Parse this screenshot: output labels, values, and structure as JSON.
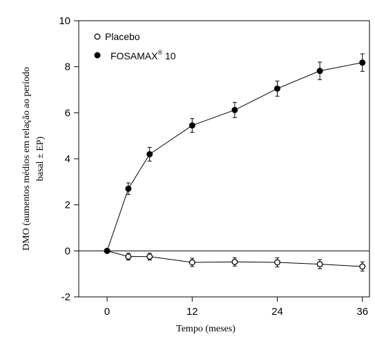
{
  "chart_data": {
    "type": "line",
    "xlabel": "Tempo (meses)",
    "ylabel_line1": "DMO (aumentos médios em relação ao período",
    "ylabel_line2": "basal ± EP)",
    "xticks": [
      "0",
      "12",
      "24",
      "36"
    ],
    "yticks": [
      "-2",
      "0",
      "2",
      "4",
      "6",
      "8",
      "10"
    ],
    "xlim": [
      -4,
      37
    ],
    "ylim": [
      -2,
      10
    ],
    "zero_reference_line": true,
    "legend_position": "top-left",
    "series": [
      {
        "name": "Placebo",
        "marker": "open-circle",
        "points": [
          {
            "x": 0,
            "y": 0,
            "err": 0
          },
          {
            "x": 3,
            "y": -0.25,
            "err": 0.15
          },
          {
            "x": 6,
            "y": -0.25,
            "err": 0.15
          },
          {
            "x": 12,
            "y": -0.5,
            "err": 0.18
          },
          {
            "x": 18,
            "y": -0.48,
            "err": 0.18
          },
          {
            "x": 24,
            "y": -0.5,
            "err": 0.2
          },
          {
            "x": 30,
            "y": -0.58,
            "err": 0.2
          },
          {
            "x": 36,
            "y": -0.68,
            "err": 0.2
          }
        ]
      },
      {
        "name": "FOSAMAX",
        "name_superscript": "®",
        "name_suffix": " 10",
        "marker": "filled-circle",
        "points": [
          {
            "x": 0,
            "y": 0,
            "err": 0
          },
          {
            "x": 3,
            "y": 2.7,
            "err": 0.25
          },
          {
            "x": 6,
            "y": 4.2,
            "err": 0.3
          },
          {
            "x": 12,
            "y": 5.45,
            "err": 0.3
          },
          {
            "x": 18,
            "y": 6.12,
            "err": 0.33
          },
          {
            "x": 24,
            "y": 7.05,
            "err": 0.33
          },
          {
            "x": 30,
            "y": 7.82,
            "err": 0.38
          },
          {
            "x": 36,
            "y": 8.18,
            "err": 0.38
          }
        ]
      }
    ]
  }
}
